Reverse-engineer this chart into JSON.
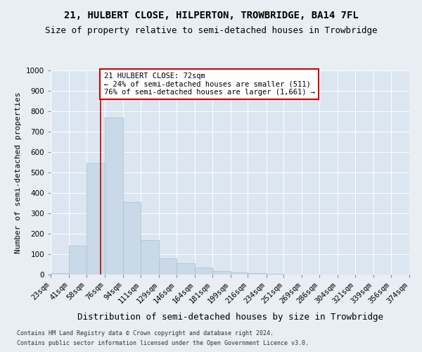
{
  "title": "21, HULBERT CLOSE, HILPERTON, TROWBRIDGE, BA14 7FL",
  "subtitle": "Size of property relative to semi-detached houses in Trowbridge",
  "xlabel": "Distribution of semi-detached houses by size in Trowbridge",
  "ylabel": "Number of semi-detached properties",
  "footnote1": "Contains HM Land Registry data © Crown copyright and database right 2024.",
  "footnote2": "Contains public sector information licensed under the Open Government Licence v3.0.",
  "bin_edges": [
    23,
    41,
    58,
    76,
    94,
    111,
    129,
    146,
    164,
    181,
    199,
    216,
    234,
    251,
    269,
    286,
    304,
    321,
    339,
    356,
    374
  ],
  "bin_labels": [
    "23sqm",
    "41sqm",
    "58sqm",
    "76sqm",
    "94sqm",
    "111sqm",
    "129sqm",
    "146sqm",
    "164sqm",
    "181sqm",
    "199sqm",
    "216sqm",
    "234sqm",
    "251sqm",
    "269sqm",
    "286sqm",
    "304sqm",
    "321sqm",
    "339sqm",
    "356sqm",
    "374sqm"
  ],
  "bar_heights": [
    8,
    140,
    545,
    770,
    355,
    170,
    80,
    55,
    35,
    18,
    10,
    6,
    3,
    1,
    1,
    0,
    0,
    0,
    0,
    0
  ],
  "bar_color": "#c9d9e8",
  "bar_edge_color": "#a8bfce",
  "vline_color": "#cc0000",
  "vline_x": 72,
  "annotation_text": "21 HULBERT CLOSE: 72sqm\n← 24% of semi-detached houses are smaller (511)\n76% of semi-detached houses are larger (1,661) →",
  "annotation_box_color": "#ffffff",
  "annotation_box_edge": "#cc0000",
  "ylim": [
    0,
    1000
  ],
  "yticks": [
    0,
    100,
    200,
    300,
    400,
    500,
    600,
    700,
    800,
    900,
    1000
  ],
  "bg_color": "#e8eef4",
  "plot_bg_color": "#dce6f0",
  "title_fontsize": 10,
  "subtitle_fontsize": 9,
  "ylabel_fontsize": 8,
  "xlabel_fontsize": 9,
  "tick_fontsize": 7.5,
  "annot_fontsize": 7.5,
  "footnote_fontsize": 6
}
